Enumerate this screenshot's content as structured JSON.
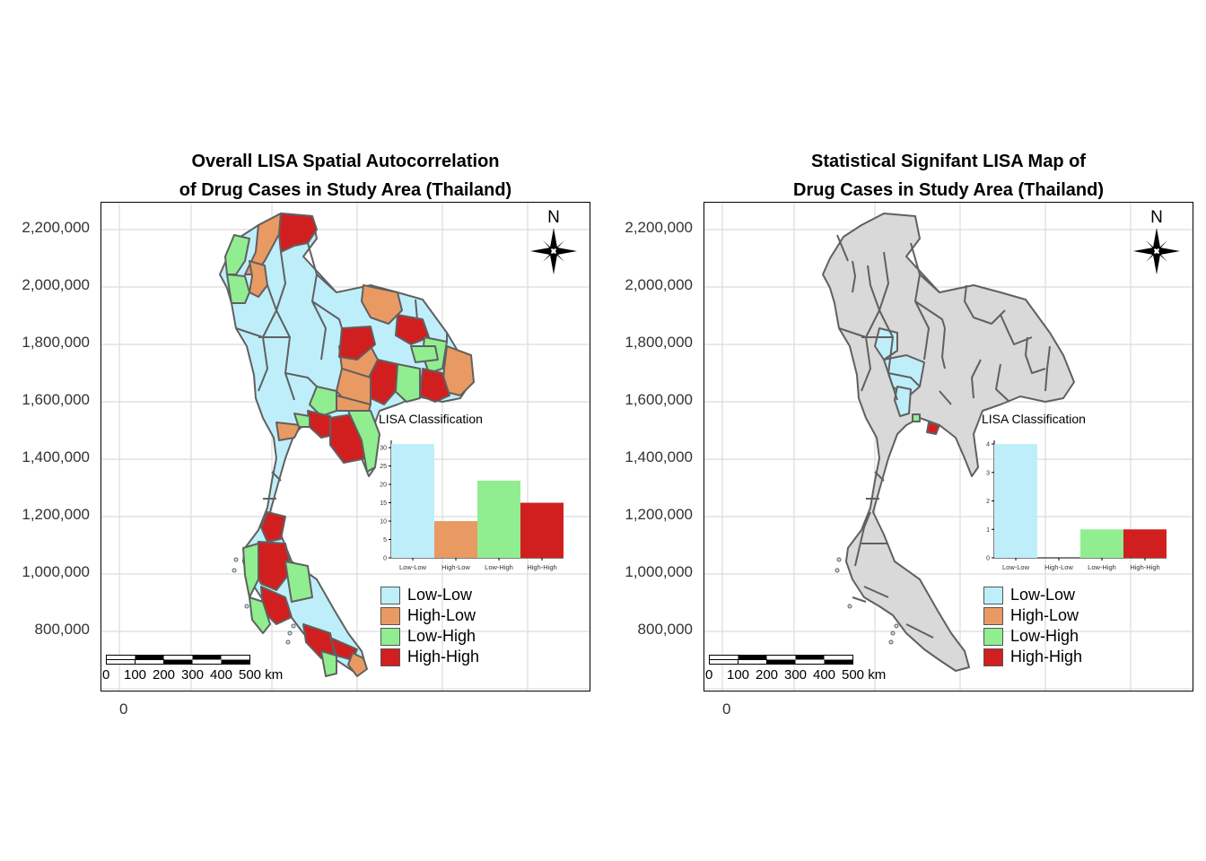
{
  "colors": {
    "low_low": "#bfeefb",
    "high_low": "#e99a63",
    "low_high": "#90ee90",
    "high_high": "#d11f1f",
    "not_significant": "#d9d9d9",
    "border": "#606060",
    "grid": "#d9d9d9"
  },
  "y_ticks": [
    "2,200,000",
    "2,000,000",
    "1,800,000",
    "1,600,000",
    "1,400,000",
    "1,200,000",
    "1,000,000",
    "800,000"
  ],
  "x_tick": "0",
  "north_label": "N",
  "scale_labels": [
    "0",
    "100",
    "200",
    "300",
    "400",
    "500 km"
  ],
  "legend": {
    "items": [
      {
        "label": "Low-Low",
        "color": "#bfeefb"
      },
      {
        "label": "High-Low",
        "color": "#e99a63"
      },
      {
        "label": "Low-High",
        "color": "#90ee90"
      },
      {
        "label": "High-High",
        "color": "#d11f1f"
      }
    ]
  },
  "left": {
    "title_line1": "Overall LISA Spatial Autocorrelation",
    "title_line2": "of Drug Cases in Study Area (Thailand)",
    "inset_title": "LISA Classification",
    "chart_data": {
      "type": "bar",
      "title": "LISA Classification",
      "categories": [
        "Low-Low",
        "High-Low",
        "Low-High",
        "High-High"
      ],
      "values": [
        31,
        10,
        21,
        15
      ],
      "y_ticks": [
        0,
        5,
        10,
        15,
        20,
        25,
        30
      ],
      "ylim": [
        0,
        31
      ]
    }
  },
  "right": {
    "title_line1": "Statistical Signifant LISA Map of",
    "title_line2": "Drug Cases in Study Area (Thailand)",
    "inset_title": "LISA Classification",
    "chart_data": {
      "type": "bar",
      "title": "LISA Classification",
      "categories": [
        "Low-Low",
        "High-Low",
        "Low-High",
        "High-High"
      ],
      "values": [
        4,
        0,
        1,
        1
      ],
      "y_ticks": [
        0,
        1,
        2,
        3,
        4
      ],
      "ylim": [
        0,
        4
      ]
    }
  }
}
